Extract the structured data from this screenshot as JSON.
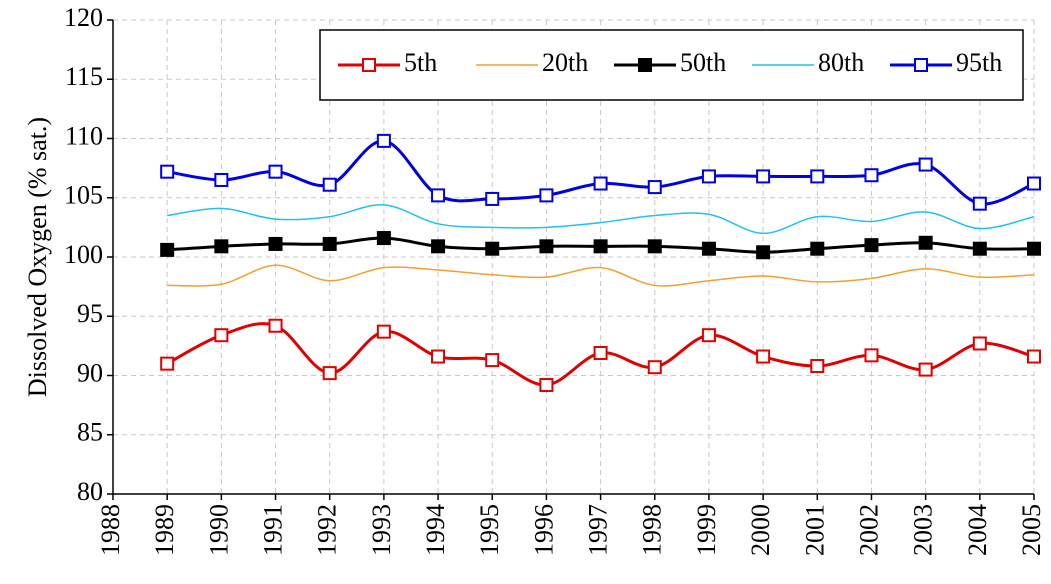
{
  "chart_data": {
    "type": "line",
    "y_label": "Dissolved Oxygen (% sat.)",
    "x": [
      1989,
      1990,
      1991,
      1992,
      1993,
      1994,
      1995,
      1996,
      1997,
      1998,
      1999,
      2000,
      2001,
      2002,
      2003,
      2004,
      2005
    ],
    "xlim": [
      1988,
      2005
    ],
    "xticks": [
      1988,
      1989,
      1990,
      1991,
      1992,
      1993,
      1994,
      1995,
      1996,
      1997,
      1998,
      1999,
      2000,
      2001,
      2002,
      2003,
      2004,
      2005
    ],
    "ylim": [
      80,
      120
    ],
    "yticks": [
      80,
      85,
      90,
      95,
      100,
      105,
      110,
      115,
      120
    ],
    "grid": true,
    "legend": "top-right",
    "series": [
      {
        "name": "5th",
        "color": "#e00000",
        "marker": "open-square",
        "values": [
          91.0,
          93.4,
          94.2,
          90.2,
          93.7,
          91.6,
          91.3,
          89.2,
          91.9,
          90.7,
          93.4,
          91.6,
          90.8,
          91.7,
          90.5,
          92.7,
          91.6
        ]
      },
      {
        "name": "20th",
        "color": "#f0a030",
        "marker": null,
        "values": [
          97.6,
          97.7,
          99.3,
          98.0,
          99.1,
          98.9,
          98.5,
          98.3,
          99.1,
          97.6,
          98.0,
          98.4,
          97.9,
          98.2,
          99.0,
          98.3,
          98.5
        ]
      },
      {
        "name": "50th",
        "color": "#000000",
        "marker": "filled-square",
        "values": [
          100.6,
          100.9,
          101.1,
          101.1,
          101.6,
          100.9,
          100.7,
          100.9,
          100.9,
          100.9,
          100.7,
          100.4,
          100.7,
          101.0,
          101.2,
          100.7,
          100.7
        ]
      },
      {
        "name": "80th",
        "color": "#20c0f0",
        "marker": null,
        "values": [
          103.5,
          104.1,
          103.2,
          103.4,
          104.4,
          102.8,
          102.5,
          102.5,
          102.9,
          103.5,
          103.6,
          102.0,
          103.4,
          103.0,
          103.8,
          102.4,
          103.4
        ]
      },
      {
        "name": "95th",
        "color": "#0000e0",
        "marker": "open-square",
        "values": [
          107.2,
          106.5,
          107.2,
          106.1,
          109.8,
          105.2,
          104.9,
          105.2,
          106.2,
          105.9,
          106.8,
          106.8,
          106.8,
          106.9,
          107.8,
          104.5,
          106.2
        ]
      }
    ]
  }
}
